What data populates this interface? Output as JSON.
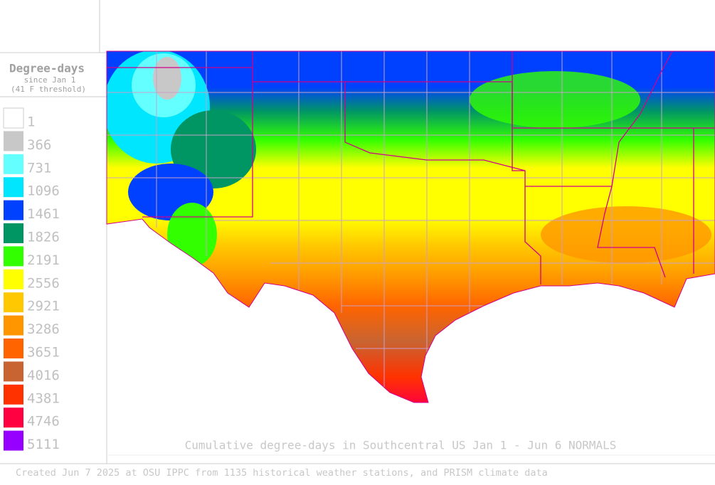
{
  "legend": {
    "title": "Degree-days",
    "subtitle": "since Jan 1",
    "threshold": "(41 F threshold)",
    "items": [
      {
        "label": "1",
        "color": "#ffffff"
      },
      {
        "label": "366",
        "color": "#c8c8c8"
      },
      {
        "label": "731",
        "color": "#64ffff"
      },
      {
        "label": "1096",
        "color": "#00e6ff"
      },
      {
        "label": "1461",
        "color": "#0040ff"
      },
      {
        "label": "1826",
        "color": "#009664"
      },
      {
        "label": "2191",
        "color": "#32ff00"
      },
      {
        "label": "2556",
        "color": "#ffff00"
      },
      {
        "label": "2921",
        "color": "#ffc800"
      },
      {
        "label": "3286",
        "color": "#ff9600"
      },
      {
        "label": "3651",
        "color": "#ff6400"
      },
      {
        "label": "4016",
        "color": "#c86432"
      },
      {
        "label": "4381",
        "color": "#ff3200"
      },
      {
        "label": "4746",
        "color": "#ff0040"
      },
      {
        "label": "5111",
        "color": "#9600ff"
      }
    ]
  },
  "caption": "Cumulative degree-days in Southcentral US Jan 1 - Jun 6 NORMALS",
  "footer": "Created Jun 7 2025 at OSU IPPC from 1135 historical weather stations, and PRISM climate data"
}
